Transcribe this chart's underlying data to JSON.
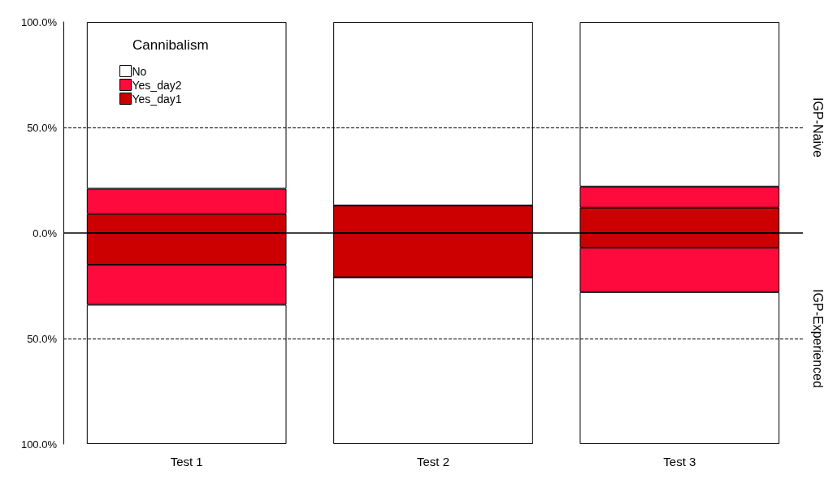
{
  "chart_data": {
    "type": "bar",
    "stacked": true,
    "categories": [
      "Test 1",
      "Test 2",
      "Test 3"
    ],
    "legend_title": "Cannibalism",
    "legend": "top left",
    "series": [
      {
        "name": "Yes_day1",
        "color": "#cc0000",
        "values": [
          9,
          13,
          12
        ]
      },
      {
        "name": "Yes_day2",
        "color": "#ff0a3c",
        "values": [
          12,
          0,
          10
        ]
      },
      {
        "name": "No",
        "color": "#ffffff",
        "values": [
          79,
          87,
          78
        ]
      },
      {
        "color": "#cc0000",
        "values": [
          -15,
          -21,
          -7
        ]
      },
      {
        "color": "#ff0a3c",
        "values": [
          -19,
          0,
          -21
        ]
      },
      {
        "color": "#ffffff",
        "values": [
          -66,
          -79,
          -72
        ]
      }
    ],
    "ylim": [
      -100,
      100
    ],
    "yticks": [
      {
        "value": -100,
        "label": "100.0%"
      },
      {
        "value": -50,
        "label": "50.0%"
      },
      {
        "value": 0,
        "label": "0.0%"
      },
      {
        "value": 50,
        "label": "50.0%"
      },
      {
        "value": 100,
        "label": "100.0%"
      }
    ],
    "ref_lines": [
      {
        "axis": "y",
        "value": 0,
        "line_style": "solid",
        "color": "#000000"
      },
      {
        "axis": "y",
        "value": 50,
        "line_style": "dashed",
        "color": "#000000"
      },
      {
        "axis": "y",
        "value": -50,
        "line_style": "dashed",
        "color": "#000000"
      }
    ],
    "annotations": [
      "IGP-Naive",
      "IGP-Experienced"
    ]
  }
}
